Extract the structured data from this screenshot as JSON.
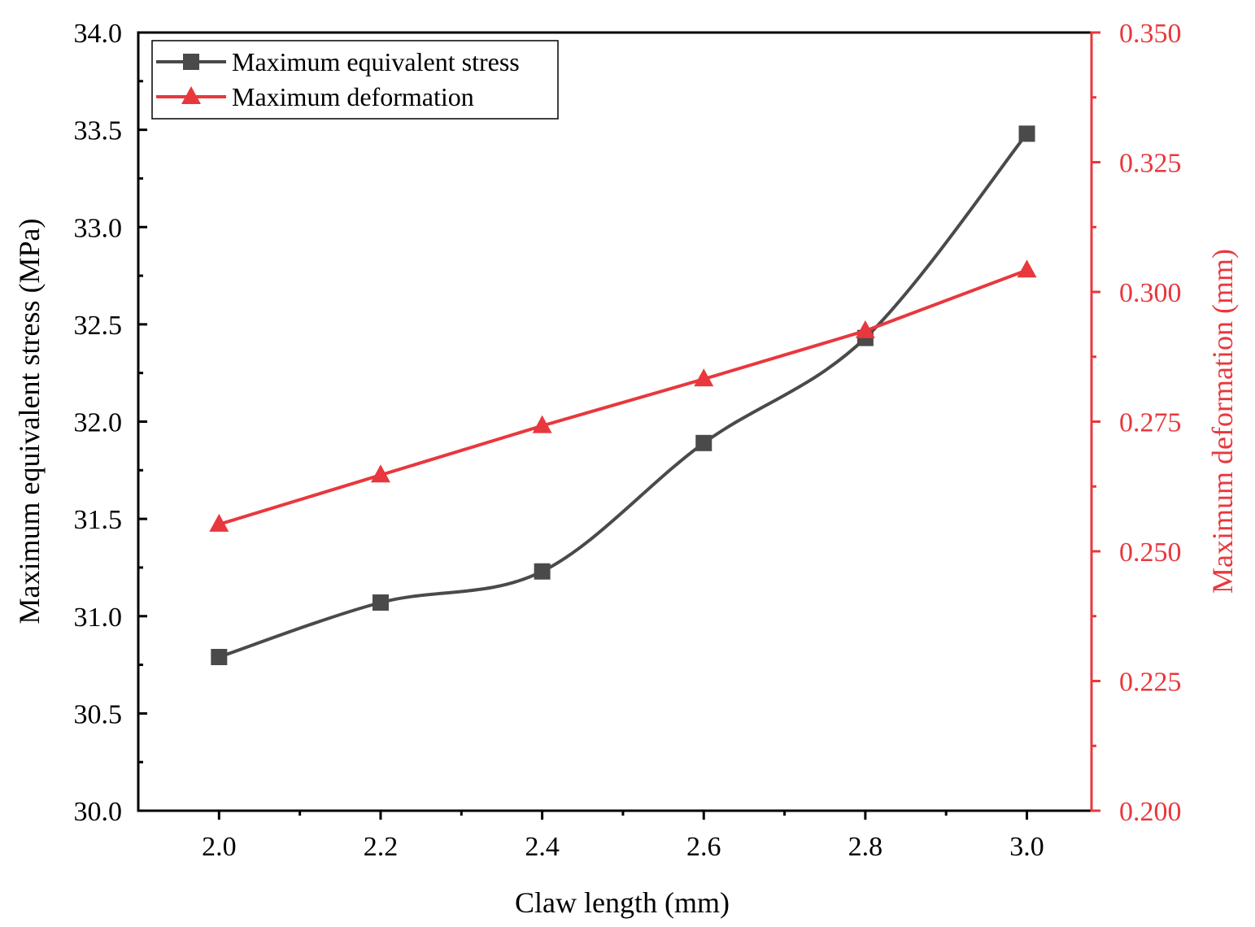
{
  "chart_data": {
    "type": "line",
    "x_axis": {
      "label": "Claw length (mm)",
      "range": [
        1.9,
        3.08
      ],
      "major_ticks": [
        2.0,
        2.2,
        2.4,
        2.6,
        2.8,
        3.0
      ],
      "minor_ticks": [
        2.1,
        2.3,
        2.5,
        2.7,
        2.9
      ],
      "tick_labels": [
        "2.0",
        "2.2",
        "2.4",
        "2.6",
        "2.8",
        "3.0"
      ]
    },
    "y_axis_left": {
      "label": "Maximum equivalent stress (MPa)",
      "range": [
        30.0,
        34.0
      ],
      "major_ticks": [
        30.0,
        30.5,
        31.0,
        31.5,
        32.0,
        32.5,
        33.0,
        33.5,
        34.0
      ],
      "minor_ticks": [
        30.25,
        30.75,
        31.25,
        31.75,
        32.25,
        32.75,
        33.25,
        33.75
      ],
      "tick_labels": [
        "30.0",
        "30.5",
        "31.0",
        "31.5",
        "32.0",
        "32.5",
        "33.0",
        "33.5",
        "34.0"
      ]
    },
    "y_axis_right": {
      "label": "Maximum deformation (mm)",
      "range": [
        0.2,
        0.35
      ],
      "major_ticks": [
        0.2,
        0.225,
        0.25,
        0.275,
        0.3,
        0.325,
        0.35
      ],
      "minor_ticks": [
        0.2125,
        0.2375,
        0.2625,
        0.2875,
        0.3125,
        0.3375
      ],
      "tick_labels": [
        "0.200",
        "0.225",
        "0.250",
        "0.275",
        "0.300",
        "0.325",
        "0.350"
      ],
      "color": "#e8383d"
    },
    "series": [
      {
        "name": "Maximum equivalent stress",
        "axis": "left",
        "marker": "square",
        "smooth": true,
        "color": "#4a4a4a",
        "x": [
          2.0,
          2.2,
          2.4,
          2.6,
          2.8,
          3.0
        ],
        "values": [
          30.79,
          31.07,
          31.23,
          31.89,
          32.43,
          33.48
        ]
      },
      {
        "name": "Maximum deformation",
        "axis": "right",
        "marker": "triangle",
        "smooth": false,
        "color": "#e8383d",
        "x": [
          2.0,
          2.2,
          2.4,
          2.6,
          2.8,
          3.0
        ],
        "values": [
          0.2552,
          0.2647,
          0.2742,
          0.2832,
          0.2925,
          0.3042
        ]
      }
    ],
    "legend": {
      "position": "top-left",
      "entries": [
        "Maximum equivalent stress",
        "Maximum deformation"
      ]
    }
  }
}
